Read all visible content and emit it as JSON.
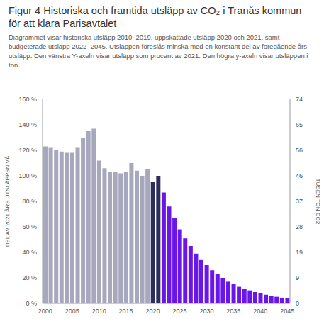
{
  "chart_data": {
    "type": "bar",
    "title": "Figur 4 Historiska och framtida utsläpp av CO₂ i Tranås kommun för att klara Parisavtalet",
    "subtitle": "Diagrammet visar historiska utsläpp 2010–2019, uppskattade utsläpp 2020 och 2021, samt budgeterade utsläpp 2022–2045. Utsläppen föreslås minska med en konstant del av föregående års utsläpp. Den vänstra Y-axeln visar utsläpp som procent av 2021. Den högra y-axeln visar utsläppen i ton.",
    "categories": [
      "2000",
      null,
      null,
      null,
      null,
      "2005",
      null,
      null,
      null,
      null,
      "2010",
      null,
      null,
      null,
      null,
      "2015",
      null,
      null,
      null,
      null,
      "2020",
      null,
      null,
      null,
      null,
      "2025",
      null,
      null,
      null,
      null,
      "2030",
      null,
      null,
      null,
      null,
      "2035",
      null,
      null,
      null,
      null,
      "2040",
      null,
      null,
      null,
      null,
      "2045"
    ],
    "values": [
      123,
      122,
      120,
      119,
      118,
      118,
      122,
      130,
      135,
      137,
      112,
      106,
      103,
      103,
      102,
      103,
      110,
      104,
      100,
      105,
      95,
      100,
      87,
      76,
      67,
      58,
      51,
      45,
      39,
      34,
      30,
      26,
      23,
      20,
      17,
      15,
      13,
      11.6,
      10.2,
      8.9,
      7.8,
      6.8,
      5.9,
      5.2,
      4.5,
      4
    ],
    "colors": [
      "#a7a7bd",
      "#a7a7bd",
      "#a7a7bd",
      "#a7a7bd",
      "#a7a7bd",
      "#a7a7bd",
      "#a7a7bd",
      "#a7a7bd",
      "#a7a7bd",
      "#a7a7bd",
      "#a7a7bd",
      "#a7a7bd",
      "#a7a7bd",
      "#a7a7bd",
      "#a7a7bd",
      "#a7a7bd",
      "#a7a7bd",
      "#a7a7bd",
      "#a7a7bd",
      "#a7a7bd",
      "#2b2d5c",
      "#2b2d5c",
      "#6a16e8",
      "#6a16e8",
      "#6a16e8",
      "#6a16e8",
      "#6a16e8",
      "#6a16e8",
      "#6a16e8",
      "#6a16e8",
      "#6a16e8",
      "#6a16e8",
      "#6a16e8",
      "#6a16e8",
      "#6a16e8",
      "#6a16e8",
      "#6a16e8",
      "#6a16e8",
      "#6a16e8",
      "#6a16e8",
      "#6a16e8",
      "#6a16e8",
      "#6a16e8",
      "#6a16e8",
      "#6a16e8",
      "#6a16e8"
    ],
    "ylim": [
      0,
      160
    ],
    "yticks": [
      {
        "value": 0,
        "label": "0 %"
      },
      {
        "value": 20,
        "label": "20 %"
      },
      {
        "value": 40,
        "label": "40 %"
      },
      {
        "value": 60,
        "label": "60 %"
      },
      {
        "value": 80,
        "label": "80 %"
      },
      {
        "value": 100,
        "label": "100 %"
      },
      {
        "value": 120,
        "label": "120 %"
      },
      {
        "value": 140,
        "label": "140 %"
      },
      {
        "value": 160,
        "label": "160 %"
      }
    ],
    "ylabel": "DEL AV 2021 ÅRS UTSLÄPPSNIVÅ",
    "y2lim": [
      0,
      74.08
    ],
    "y2ticks": [
      0,
      {
        "value": 9.26,
        "label": "9"
      },
      {
        "value": 18.52,
        "label": "19"
      },
      {
        "value": 27.78,
        "label": "28"
      },
      {
        "value": 37.04,
        "label": "37"
      },
      {
        "value": 46.3,
        "label": "46"
      },
      {
        "value": 55.56,
        "label": "56"
      },
      {
        "value": 64.82,
        "label": "65"
      },
      {
        "value": 74.08,
        "label": "74"
      }
    ],
    "y2label": "TUSEN TON CO2",
    "grid": false
  }
}
